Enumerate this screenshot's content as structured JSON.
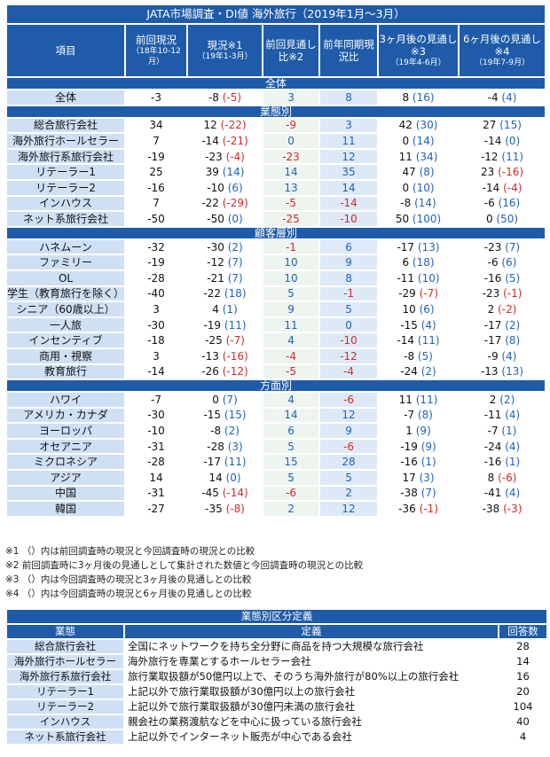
{
  "title": "JATA市場調査・DI値 海外旅行（2019年1月～3月）",
  "headers": [
    {
      "main": "項目",
      "sub": ""
    },
    {
      "main": "前回現況",
      "sub": "（18年10-12月）"
    },
    {
      "main": "現況※1",
      "sub": "（19年1-3月）"
    },
    {
      "main": "前回見通し比※2",
      "sub": ""
    },
    {
      "main": "前年同期現況比",
      "sub": ""
    },
    {
      "main": "3ヶ月後の見通し※3",
      "sub": "（19年4-6月）"
    },
    {
      "main": "6ヶ月後の見通し※4",
      "sub": "（19年7-9月）"
    }
  ],
  "sections": [
    {
      "name": "全体",
      "rows": [
        {
          "label": "全体",
          "prev": "-3",
          "cur": "-8",
          "cur_diff": "(-5)",
          "vs_forecast": "3",
          "yoy": "8",
          "m3": "8",
          "m3_diff": "(16)",
          "m6": "-4",
          "m6_diff": "(4)"
        }
      ]
    },
    {
      "name": "業態別",
      "rows": [
        {
          "label": "総合旅行会社",
          "prev": "34",
          "cur": "12",
          "cur_diff": "(-22)",
          "vs_forecast": "-9",
          "yoy": "3",
          "m3": "42",
          "m3_diff": "(30)",
          "m6": "27",
          "m6_diff": "(15)"
        },
        {
          "label": "海外旅行ホールセラー",
          "prev": "7",
          "cur": "-14",
          "cur_diff": "(-21)",
          "vs_forecast": "0",
          "yoy": "11",
          "m3": "0",
          "m3_diff": "(14)",
          "m6": "-14",
          "m6_diff": "(0)"
        },
        {
          "label": "海外旅行系旅行会社",
          "prev": "-19",
          "cur": "-23",
          "cur_diff": "(-4)",
          "vs_forecast": "-23",
          "yoy": "12",
          "m3": "11",
          "m3_diff": "(34)",
          "m6": "-12",
          "m6_diff": "(11)"
        },
        {
          "label": "リテーラー1",
          "prev": "25",
          "cur": "39",
          "cur_diff": "(14)",
          "vs_forecast": "14",
          "yoy": "35",
          "m3": "47",
          "m3_diff": "(8)",
          "m6": "23",
          "m6_diff": "(-16)"
        },
        {
          "label": "リテーラー2",
          "prev": "-16",
          "cur": "-10",
          "cur_diff": "(6)",
          "vs_forecast": "13",
          "yoy": "14",
          "m3": "0",
          "m3_diff": "(10)",
          "m6": "-14",
          "m6_diff": "(-4)"
        },
        {
          "label": "インハウス",
          "prev": "7",
          "cur": "-22",
          "cur_diff": "(-29)",
          "vs_forecast": "-5",
          "yoy": "-14",
          "m3": "-8",
          "m3_diff": "(14)",
          "m6": "-6",
          "m6_diff": "(16)"
        },
        {
          "label": "ネット系旅行会社",
          "prev": "-50",
          "cur": "-50",
          "cur_diff": "(0)",
          "vs_forecast": "-25",
          "yoy": "-10",
          "m3": "50",
          "m3_diff": "(100)",
          "m6": "0",
          "m6_diff": "(50)"
        }
      ]
    },
    {
      "name": "顧客層別",
      "rows": [
        {
          "label": "ハネムーン",
          "prev": "-32",
          "cur": "-30",
          "cur_diff": "(2)",
          "vs_forecast": "-1",
          "yoy": "6",
          "m3": "-17",
          "m3_diff": "(13)",
          "m6": "-23",
          "m6_diff": "(7)"
        },
        {
          "label": "ファミリー",
          "prev": "-19",
          "cur": "-12",
          "cur_diff": "(7)",
          "vs_forecast": "10",
          "yoy": "9",
          "m3": "6",
          "m3_diff": "(18)",
          "m6": "-6",
          "m6_diff": "(6)"
        },
        {
          "label": "OL",
          "prev": "-28",
          "cur": "-21",
          "cur_diff": "(7)",
          "vs_forecast": "10",
          "yoy": "8",
          "m3": "-11",
          "m3_diff": "(10)",
          "m6": "-16",
          "m6_diff": "(5)"
        },
        {
          "label": "学生（教育旅行を除く）",
          "prev": "-40",
          "cur": "-22",
          "cur_diff": "(18)",
          "vs_forecast": "5",
          "yoy": "-1",
          "m3": "-29",
          "m3_diff": "(-7)",
          "m6": "-23",
          "m6_diff": "(-1)"
        },
        {
          "label": "シニア（60歳以上）",
          "prev": "3",
          "cur": "4",
          "cur_diff": "(1)",
          "vs_forecast": "9",
          "yoy": "5",
          "m3": "10",
          "m3_diff": "(6)",
          "m6": "2",
          "m6_diff": "(-2)"
        },
        {
          "label": "一人旅",
          "prev": "-30",
          "cur": "-19",
          "cur_diff": "(11)",
          "vs_forecast": "11",
          "yoy": "0",
          "m3": "-15",
          "m3_diff": "(4)",
          "m6": "-17",
          "m6_diff": "(2)"
        },
        {
          "label": "インセンティブ",
          "prev": "-18",
          "cur": "-25",
          "cur_diff": "(-7)",
          "vs_forecast": "4",
          "yoy": "-10",
          "m3": "-14",
          "m3_diff": "(11)",
          "m6": "-17",
          "m6_diff": "(8)"
        },
        {
          "label": "商用・視察",
          "prev": "3",
          "cur": "-13",
          "cur_diff": "(-16)",
          "vs_forecast": "-4",
          "yoy": "-12",
          "m3": "-8",
          "m3_diff": "(5)",
          "m6": "-9",
          "m6_diff": "(4)"
        },
        {
          "label": "教育旅行",
          "prev": "-14",
          "cur": "-26",
          "cur_diff": "(-12)",
          "vs_forecast": "-5",
          "yoy": "-4",
          "m3": "-24",
          "m3_diff": "(2)",
          "m6": "-13",
          "m6_diff": "(13)"
        }
      ]
    },
    {
      "name": "方面別",
      "rows": [
        {
          "label": "ハワイ",
          "prev": "-7",
          "cur": "0",
          "cur_diff": "(7)",
          "vs_forecast": "4",
          "yoy": "-6",
          "m3": "11",
          "m3_diff": "(11)",
          "m6": "2",
          "m6_diff": "(2)"
        },
        {
          "label": "アメリカ・カナダ",
          "prev": "-30",
          "cur": "-15",
          "cur_diff": "(15)",
          "vs_forecast": "14",
          "yoy": "12",
          "m3": "-7",
          "m3_diff": "(8)",
          "m6": "-11",
          "m6_diff": "(4)"
        },
        {
          "label": "ヨーロッパ",
          "prev": "-10",
          "cur": "-8",
          "cur_diff": "(2)",
          "vs_forecast": "6",
          "yoy": "9",
          "m3": "1",
          "m3_diff": "(9)",
          "m6": "-7",
          "m6_diff": "(1)"
        },
        {
          "label": "オセアニア",
          "prev": "-31",
          "cur": "-28",
          "cur_diff": "(3)",
          "vs_forecast": "5",
          "yoy": "-6",
          "m3": "-19",
          "m3_diff": "(9)",
          "m6": "-24",
          "m6_diff": "(4)"
        },
        {
          "label": "ミクロネシア",
          "prev": "-28",
          "cur": "-17",
          "cur_diff": "(11)",
          "vs_forecast": "15",
          "yoy": "28",
          "m3": "-16",
          "m3_diff": "(1)",
          "m6": "-16",
          "m6_diff": "(1)"
        },
        {
          "label": "アジア",
          "prev": "14",
          "cur": "14",
          "cur_diff": "(0)",
          "vs_forecast": "5",
          "yoy": "5",
          "m3": "17",
          "m3_diff": "(3)",
          "m6": "8",
          "m6_diff": "(-6)"
        },
        {
          "label": "中国",
          "prev": "-31",
          "cur": "-45",
          "cur_diff": "(-14)",
          "vs_forecast": "-6",
          "yoy": "2",
          "m3": "-38",
          "m3_diff": "(7)",
          "m6": "-41",
          "m6_diff": "(4)"
        },
        {
          "label": "韓国",
          "prev": "-27",
          "cur": "-35",
          "cur_diff": "(-8)",
          "vs_forecast": "2",
          "yoy": "12",
          "m3": "-36",
          "m3_diff": "(-1)",
          "m6": "-38",
          "m6_diff": "(-3)"
        }
      ]
    }
  ],
  "notes": [
    "※1 （）内は前回調査時の現況と今回調査時の現況との比較",
    "※2 前回調査時に3ヶ月後の見通しとして集計された数値と今回調査時の現況との比較",
    "※3 （）内は今回調査時の現況と3ヶ月後の見通しとの比較",
    "※4 （）内は今回調査時の現況と6ヶ月後の見通しとの比較"
  ],
  "definitions": {
    "title": "業態別区分定義",
    "headers": [
      "業態",
      "定義",
      "回答数"
    ],
    "rows": [
      {
        "type": "総合旅行会社",
        "desc": "全国にネットワークを持ち全分野に商品を持つ大規模な旅行会社",
        "count": "28"
      },
      {
        "type": "海外旅行ホールセラー",
        "desc": "海外旅行を専業とするホールセラー会社",
        "count": "14"
      },
      {
        "type": "海外旅行系旅行会社",
        "desc": "旅行業取扱額が50億円以上で、そのうち海外旅行が80%以上の旅行会社",
        "count": "16"
      },
      {
        "type": "リテーラー1",
        "desc": "上記以外で旅行業取扱額が30億円以上の旅行会社",
        "count": "20"
      },
      {
        "type": "リテーラー2",
        "desc": "上記以外で旅行業取扱額が30億円未満の旅行会社",
        "count": "104"
      },
      {
        "type": "インハウス",
        "desc": "親会社の業務渡航などを中心に扱っている旅行会社",
        "count": "40"
      },
      {
        "type": "ネット系旅行会社",
        "desc": "上記以外でインターネット販売が中心である会社",
        "count": "4"
      }
    ]
  },
  "colors": {
    "header_bg": "#1f5ba8",
    "label_bg": "#cfe0f4",
    "negative_diff": "#d12a2a",
    "positive_diff": "#1f63b8"
  }
}
